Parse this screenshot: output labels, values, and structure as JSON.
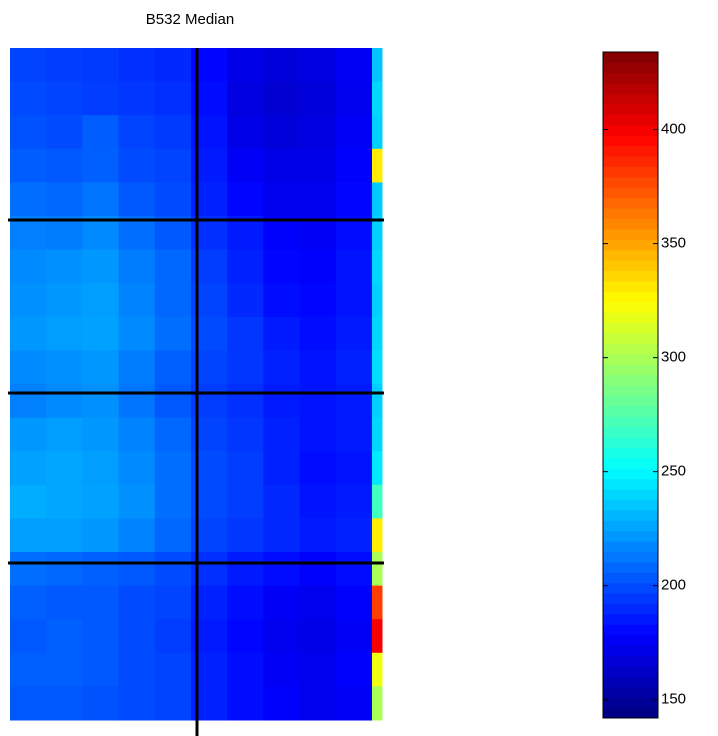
{
  "chart_data": {
    "type": "heatmap",
    "title": "B532 Median",
    "colormap": "jet",
    "clim": [
      142,
      434
    ],
    "cticks": [
      150,
      200,
      250,
      300,
      350,
      400
    ],
    "z": [
      [
        198,
        196,
        195,
        192,
        190,
        180,
        172,
        168,
        170,
        175,
        235
      ],
      [
        200,
        198,
        196,
        194,
        192,
        182,
        170,
        166,
        168,
        174,
        240
      ],
      [
        202,
        200,
        205,
        198,
        195,
        184,
        172,
        168,
        170,
        176,
        238
      ],
      [
        205,
        204,
        206,
        200,
        198,
        186,
        176,
        172,
        172,
        178,
        330
      ],
      [
        210,
        208,
        212,
        204,
        200,
        188,
        180,
        174,
        174,
        180,
        236
      ],
      [
        215,
        214,
        218,
        210,
        204,
        192,
        186,
        178,
        176,
        182,
        238
      ],
      [
        218,
        220,
        222,
        214,
        208,
        196,
        188,
        180,
        178,
        184,
        240
      ],
      [
        220,
        222,
        224,
        216,
        208,
        198,
        190,
        182,
        180,
        184,
        238
      ],
      [
        222,
        224,
        225,
        218,
        210,
        200,
        194,
        186,
        182,
        186,
        240
      ],
      [
        218,
        220,
        222,
        214,
        206,
        198,
        194,
        188,
        184,
        188,
        242
      ],
      [
        215,
        218,
        220,
        212,
        204,
        196,
        192,
        186,
        184,
        186,
        238
      ],
      [
        222,
        224,
        222,
        216,
        208,
        198,
        194,
        188,
        184,
        186,
        240
      ],
      [
        225,
        226,
        224,
        218,
        210,
        200,
        196,
        188,
        182,
        184,
        245
      ],
      [
        228,
        226,
        225,
        220,
        210,
        200,
        196,
        190,
        184,
        186,
        270
      ],
      [
        224,
        224,
        222,
        216,
        208,
        198,
        194,
        190,
        186,
        188,
        330
      ],
      [
        210,
        208,
        206,
        204,
        200,
        192,
        186,
        182,
        178,
        182,
        300
      ],
      [
        206,
        204,
        204,
        200,
        198,
        188,
        182,
        176,
        174,
        178,
        380
      ],
      [
        204,
        206,
        204,
        200,
        196,
        186,
        180,
        174,
        172,
        176,
        400
      ],
      [
        206,
        206,
        204,
        200,
        198,
        188,
        182,
        176,
        174,
        178,
        320
      ],
      [
        204,
        204,
        202,
        200,
        198,
        188,
        182,
        178,
        174,
        176,
        300
      ]
    ]
  }
}
